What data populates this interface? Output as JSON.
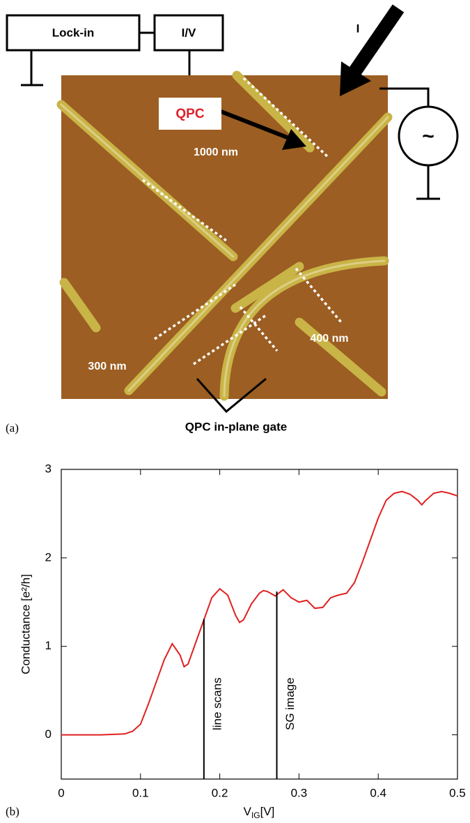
{
  "panel_a": {
    "label": "(a)",
    "lock_in": "Lock-in",
    "iv": "I/V",
    "current": "I",
    "qpc": "QPC",
    "scale_1000": "1000 nm",
    "scale_400": "400 nm",
    "scale_300": "300 nm",
    "gate": "QPC in-plane gate",
    "source": "~"
  },
  "panel_b": {
    "label": "(b)"
  },
  "chart_data": {
    "type": "line",
    "ylabel": "Conductance [e²/h]",
    "xlabel": {
      "main": "V",
      "sub": "IG",
      "unit": "[V]"
    },
    "x": [
      0,
      0.05,
      0.08,
      0.09,
      0.1,
      0.11,
      0.12,
      0.13,
      0.14,
      0.15,
      0.155,
      0.16,
      0.17,
      0.18,
      0.19,
      0.2,
      0.21,
      0.22,
      0.225,
      0.23,
      0.24,
      0.25,
      0.255,
      0.26,
      0.27,
      0.28,
      0.29,
      0.3,
      0.31,
      0.32,
      0.33,
      0.34,
      0.35,
      0.36,
      0.37,
      0.38,
      0.39,
      0.4,
      0.41,
      0.42,
      0.43,
      0.44,
      0.45,
      0.455,
      0.46,
      0.47,
      0.48,
      0.49,
      0.5
    ],
    "values": [
      0,
      0,
      0.01,
      0.04,
      0.12,
      0.35,
      0.6,
      0.85,
      1.03,
      0.9,
      0.77,
      0.8,
      1.05,
      1.3,
      1.55,
      1.65,
      1.58,
      1.35,
      1.27,
      1.3,
      1.48,
      1.6,
      1.63,
      1.62,
      1.57,
      1.64,
      1.55,
      1.5,
      1.52,
      1.43,
      1.44,
      1.55,
      1.58,
      1.6,
      1.72,
      1.95,
      2.2,
      2.45,
      2.65,
      2.73,
      2.75,
      2.72,
      2.65,
      2.6,
      2.65,
      2.73,
      2.75,
      2.73,
      2.7
    ],
    "color": "#e02020",
    "xlim": [
      0,
      0.5
    ],
    "xticks": [
      0,
      0.1,
      0.2,
      0.3,
      0.4,
      0.5
    ],
    "ylim": [
      -0.5,
      3
    ],
    "yticks": [
      0,
      1,
      2,
      3
    ],
    "annotations": [
      {
        "label": "line scans",
        "x": 0.18,
        "y": 1.31
      },
      {
        "label": "SG image",
        "x": 0.272,
        "y": 1.62
      }
    ]
  }
}
